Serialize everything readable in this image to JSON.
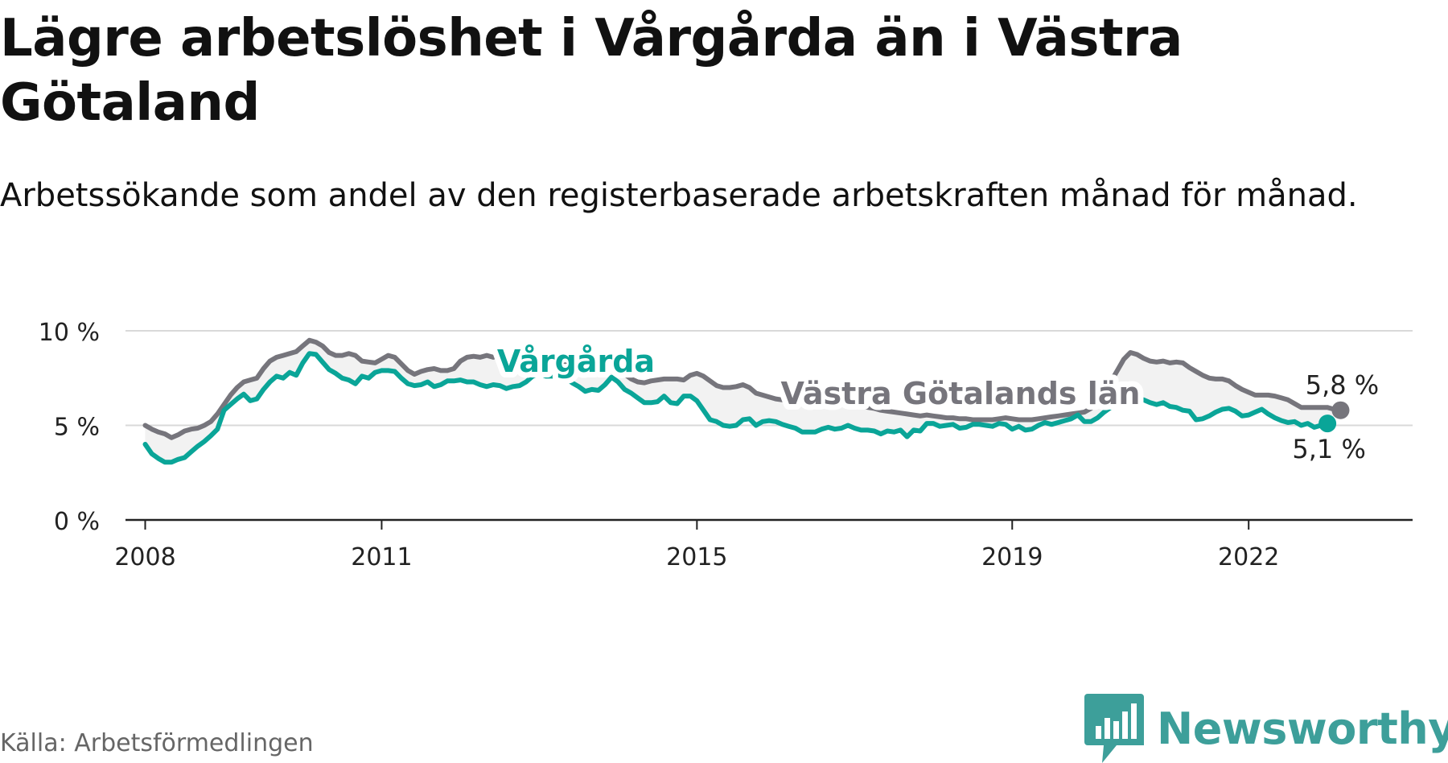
{
  "title": "Lägre arbetslöshet i Vårgårda än i Västra Götaland",
  "subtitle": "Arbetssökande som andel av den registerbaserade arbetskraften månad för månad.",
  "source": "Källa: Arbetsförmedlingen",
  "brand": {
    "name": "Newsworthy",
    "logo_icon": "newsworthy-logo-icon"
  },
  "colors": {
    "local": "#0aa598",
    "region": "#76757c",
    "grid": "#d9d9d9",
    "axis": "#222222",
    "band": "#f2f2f2",
    "brand": "#3d9f9a"
  },
  "chart_data": {
    "type": "line",
    "title": "Lägre arbetslöshet i Vårgårda än i Västra Götaland",
    "xlabel": "",
    "ylabel": "",
    "ylim": [
      0,
      10
    ],
    "y_ticks": [
      {
        "value": 0,
        "label": "0 %"
      },
      {
        "value": 5,
        "label": "5 %"
      },
      {
        "value": 10,
        "label": "10 %"
      }
    ],
    "xlim": [
      2007.75,
      2024.08
    ],
    "x_ticks": [
      {
        "value": 2008.0,
        "label": "2008"
      },
      {
        "value": 2011.0,
        "label": "2011"
      },
      {
        "value": 2015.0,
        "label": "2015"
      },
      {
        "value": 2019.0,
        "label": "2019"
      },
      {
        "value": 2022.0,
        "label": "2022"
      }
    ],
    "grid": true,
    "start_year": 2008.0,
    "step_years": 0.08333,
    "series": [
      {
        "name": "Vårgårda",
        "label": "Vårgårda",
        "end_label": "5,1 %",
        "color": "#0aa598",
        "values": [
          4.0,
          3.5,
          3.25,
          3.05,
          3.05,
          3.2,
          3.3,
          3.6,
          3.9,
          4.15,
          4.45,
          4.8,
          5.8,
          6.1,
          6.4,
          6.65,
          6.3,
          6.4,
          6.9,
          7.3,
          7.6,
          7.5,
          7.8,
          7.65,
          8.3,
          8.8,
          8.75,
          8.35,
          7.95,
          7.75,
          7.5,
          7.4,
          7.2,
          7.6,
          7.5,
          7.8,
          7.9,
          7.9,
          7.85,
          7.5,
          7.2,
          7.1,
          7.15,
          7.3,
          7.05,
          7.15,
          7.35,
          7.35,
          7.4,
          7.3,
          7.3,
          7.15,
          7.05,
          7.15,
          7.1,
          6.95,
          7.05,
          7.1,
          7.3,
          7.6,
          7.75,
          7.6,
          7.6,
          7.55,
          7.5,
          7.25,
          7.05,
          6.8,
          6.9,
          6.85,
          7.15,
          7.55,
          7.3,
          6.9,
          6.7,
          6.45,
          6.2,
          6.2,
          6.25,
          6.55,
          6.2,
          6.15,
          6.55,
          6.55,
          6.3,
          5.8,
          5.3,
          5.2,
          5.0,
          4.95,
          5.0,
          5.3,
          5.35,
          5.0,
          5.2,
          5.25,
          5.2,
          5.05,
          4.95,
          4.85,
          4.65,
          4.65,
          4.65,
          4.8,
          4.9,
          4.8,
          4.85,
          5.0,
          4.85,
          4.75,
          4.75,
          4.7,
          4.55,
          4.7,
          4.65,
          4.75,
          4.4,
          4.75,
          4.7,
          5.1,
          5.1,
          4.95,
          5.0,
          5.05,
          4.85,
          4.9,
          5.05,
          5.05,
          5.0,
          4.95,
          5.1,
          5.05,
          4.8,
          4.95,
          4.75,
          4.8,
          5.0,
          5.15,
          5.05,
          5.15,
          5.25,
          5.35,
          5.55,
          5.2,
          5.2,
          5.4,
          5.7,
          5.95,
          6.2,
          6.45,
          6.6,
          6.45,
          6.35,
          6.2,
          6.1,
          6.2,
          6.0,
          5.95,
          5.8,
          5.75,
          5.3,
          5.35,
          5.5,
          5.7,
          5.85,
          5.9,
          5.75,
          5.5,
          5.55,
          5.7,
          5.85,
          5.6,
          5.4,
          5.25,
          5.15,
          5.2,
          5.0,
          5.1,
          4.9,
          5.0,
          5.1
        ]
      },
      {
        "name": "Västra Götalands län",
        "label": "Västra Götalands län",
        "end_label": "5,8 %",
        "color": "#76757c",
        "values": [
          5.0,
          4.8,
          4.65,
          4.55,
          4.35,
          4.5,
          4.7,
          4.8,
          4.85,
          5.0,
          5.2,
          5.6,
          6.1,
          6.6,
          7.0,
          7.3,
          7.4,
          7.5,
          8.0,
          8.4,
          8.6,
          8.7,
          8.8,
          8.9,
          9.2,
          9.5,
          9.4,
          9.2,
          8.85,
          8.7,
          8.7,
          8.8,
          8.7,
          8.4,
          8.35,
          8.3,
          8.5,
          8.7,
          8.6,
          8.25,
          7.9,
          7.7,
          7.85,
          7.95,
          8.0,
          7.9,
          7.9,
          8.0,
          8.4,
          8.6,
          8.65,
          8.6,
          8.7,
          8.6,
          8.7,
          8.75,
          8.6,
          8.5,
          8.4,
          8.2,
          8.3,
          8.45,
          8.35,
          8.4,
          8.3,
          8.25,
          8.2,
          8.3,
          8.25,
          8.2,
          8.15,
          8.3,
          8.1,
          7.7,
          7.45,
          7.3,
          7.25,
          7.35,
          7.4,
          7.45,
          7.45,
          7.45,
          7.4,
          7.65,
          7.75,
          7.6,
          7.35,
          7.1,
          7.0,
          7.0,
          7.05,
          7.15,
          7.0,
          6.7,
          6.6,
          6.5,
          6.4,
          6.35,
          6.3,
          6.3,
          6.25,
          6.15,
          6.1,
          6.2,
          6.3,
          6.35,
          6.3,
          6.2,
          6.05,
          6.0,
          5.95,
          5.9,
          5.8,
          5.75,
          5.7,
          5.65,
          5.6,
          5.55,
          5.5,
          5.55,
          5.5,
          5.45,
          5.4,
          5.4,
          5.35,
          5.35,
          5.3,
          5.3,
          5.3,
          5.3,
          5.35,
          5.4,
          5.35,
          5.3,
          5.3,
          5.3,
          5.35,
          5.4,
          5.45,
          5.5,
          5.55,
          5.6,
          5.65,
          5.7,
          5.9,
          6.3,
          6.8,
          7.3,
          7.9,
          8.5,
          8.85,
          8.75,
          8.55,
          8.4,
          8.35,
          8.4,
          8.3,
          8.35,
          8.3,
          8.05,
          7.85,
          7.65,
          7.5,
          7.45,
          7.45,
          7.35,
          7.1,
          6.9,
          6.75,
          6.6,
          6.6,
          6.6,
          6.55,
          6.45,
          6.35,
          6.15,
          5.95,
          5.95,
          5.95,
          5.95,
          5.95,
          5.85,
          5.8
        ]
      }
    ],
    "annotations": [
      {
        "text": "5,8 %",
        "series": "Västra Götalands län"
      },
      {
        "text": "5,1 %",
        "series": "Vårgårda"
      }
    ]
  }
}
